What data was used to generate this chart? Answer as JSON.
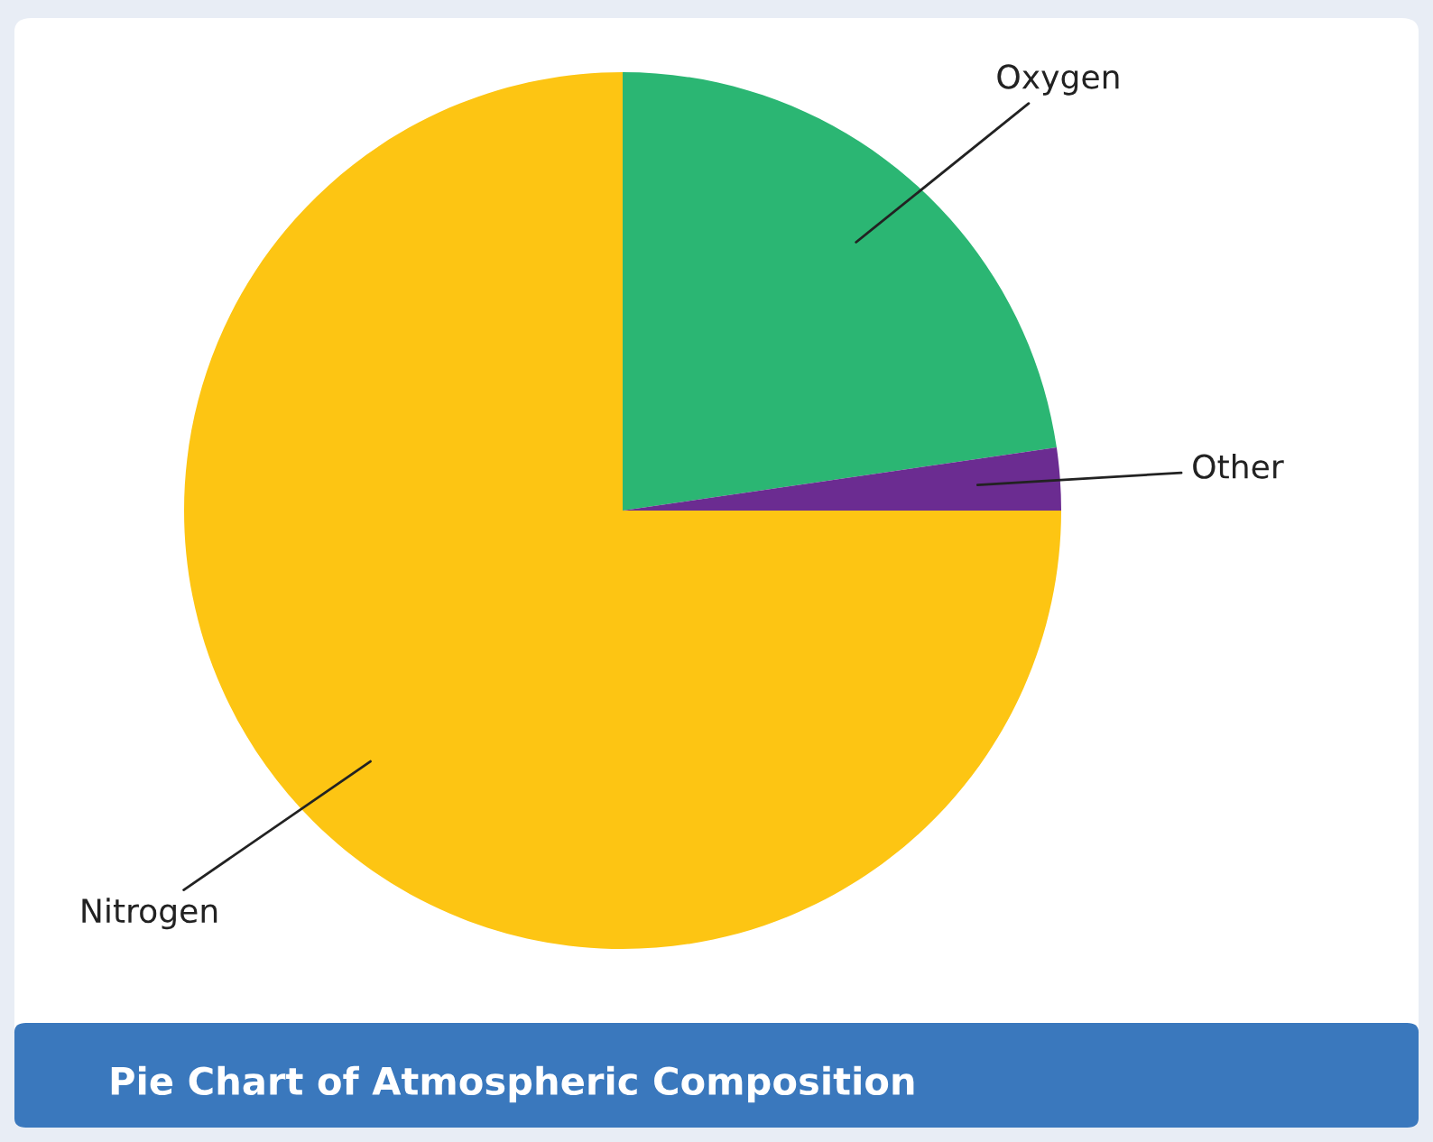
{
  "chart_data": {
    "type": "pie",
    "title": "Pie Chart of Atmospheric Composition",
    "categories": [
      "Oxygen",
      "Other",
      "Nitrogen"
    ],
    "values": [
      22.7,
      2.3,
      75
    ],
    "colors": [
      "#2bb673",
      "#6b2c91",
      "#fdc513"
    ]
  }
}
